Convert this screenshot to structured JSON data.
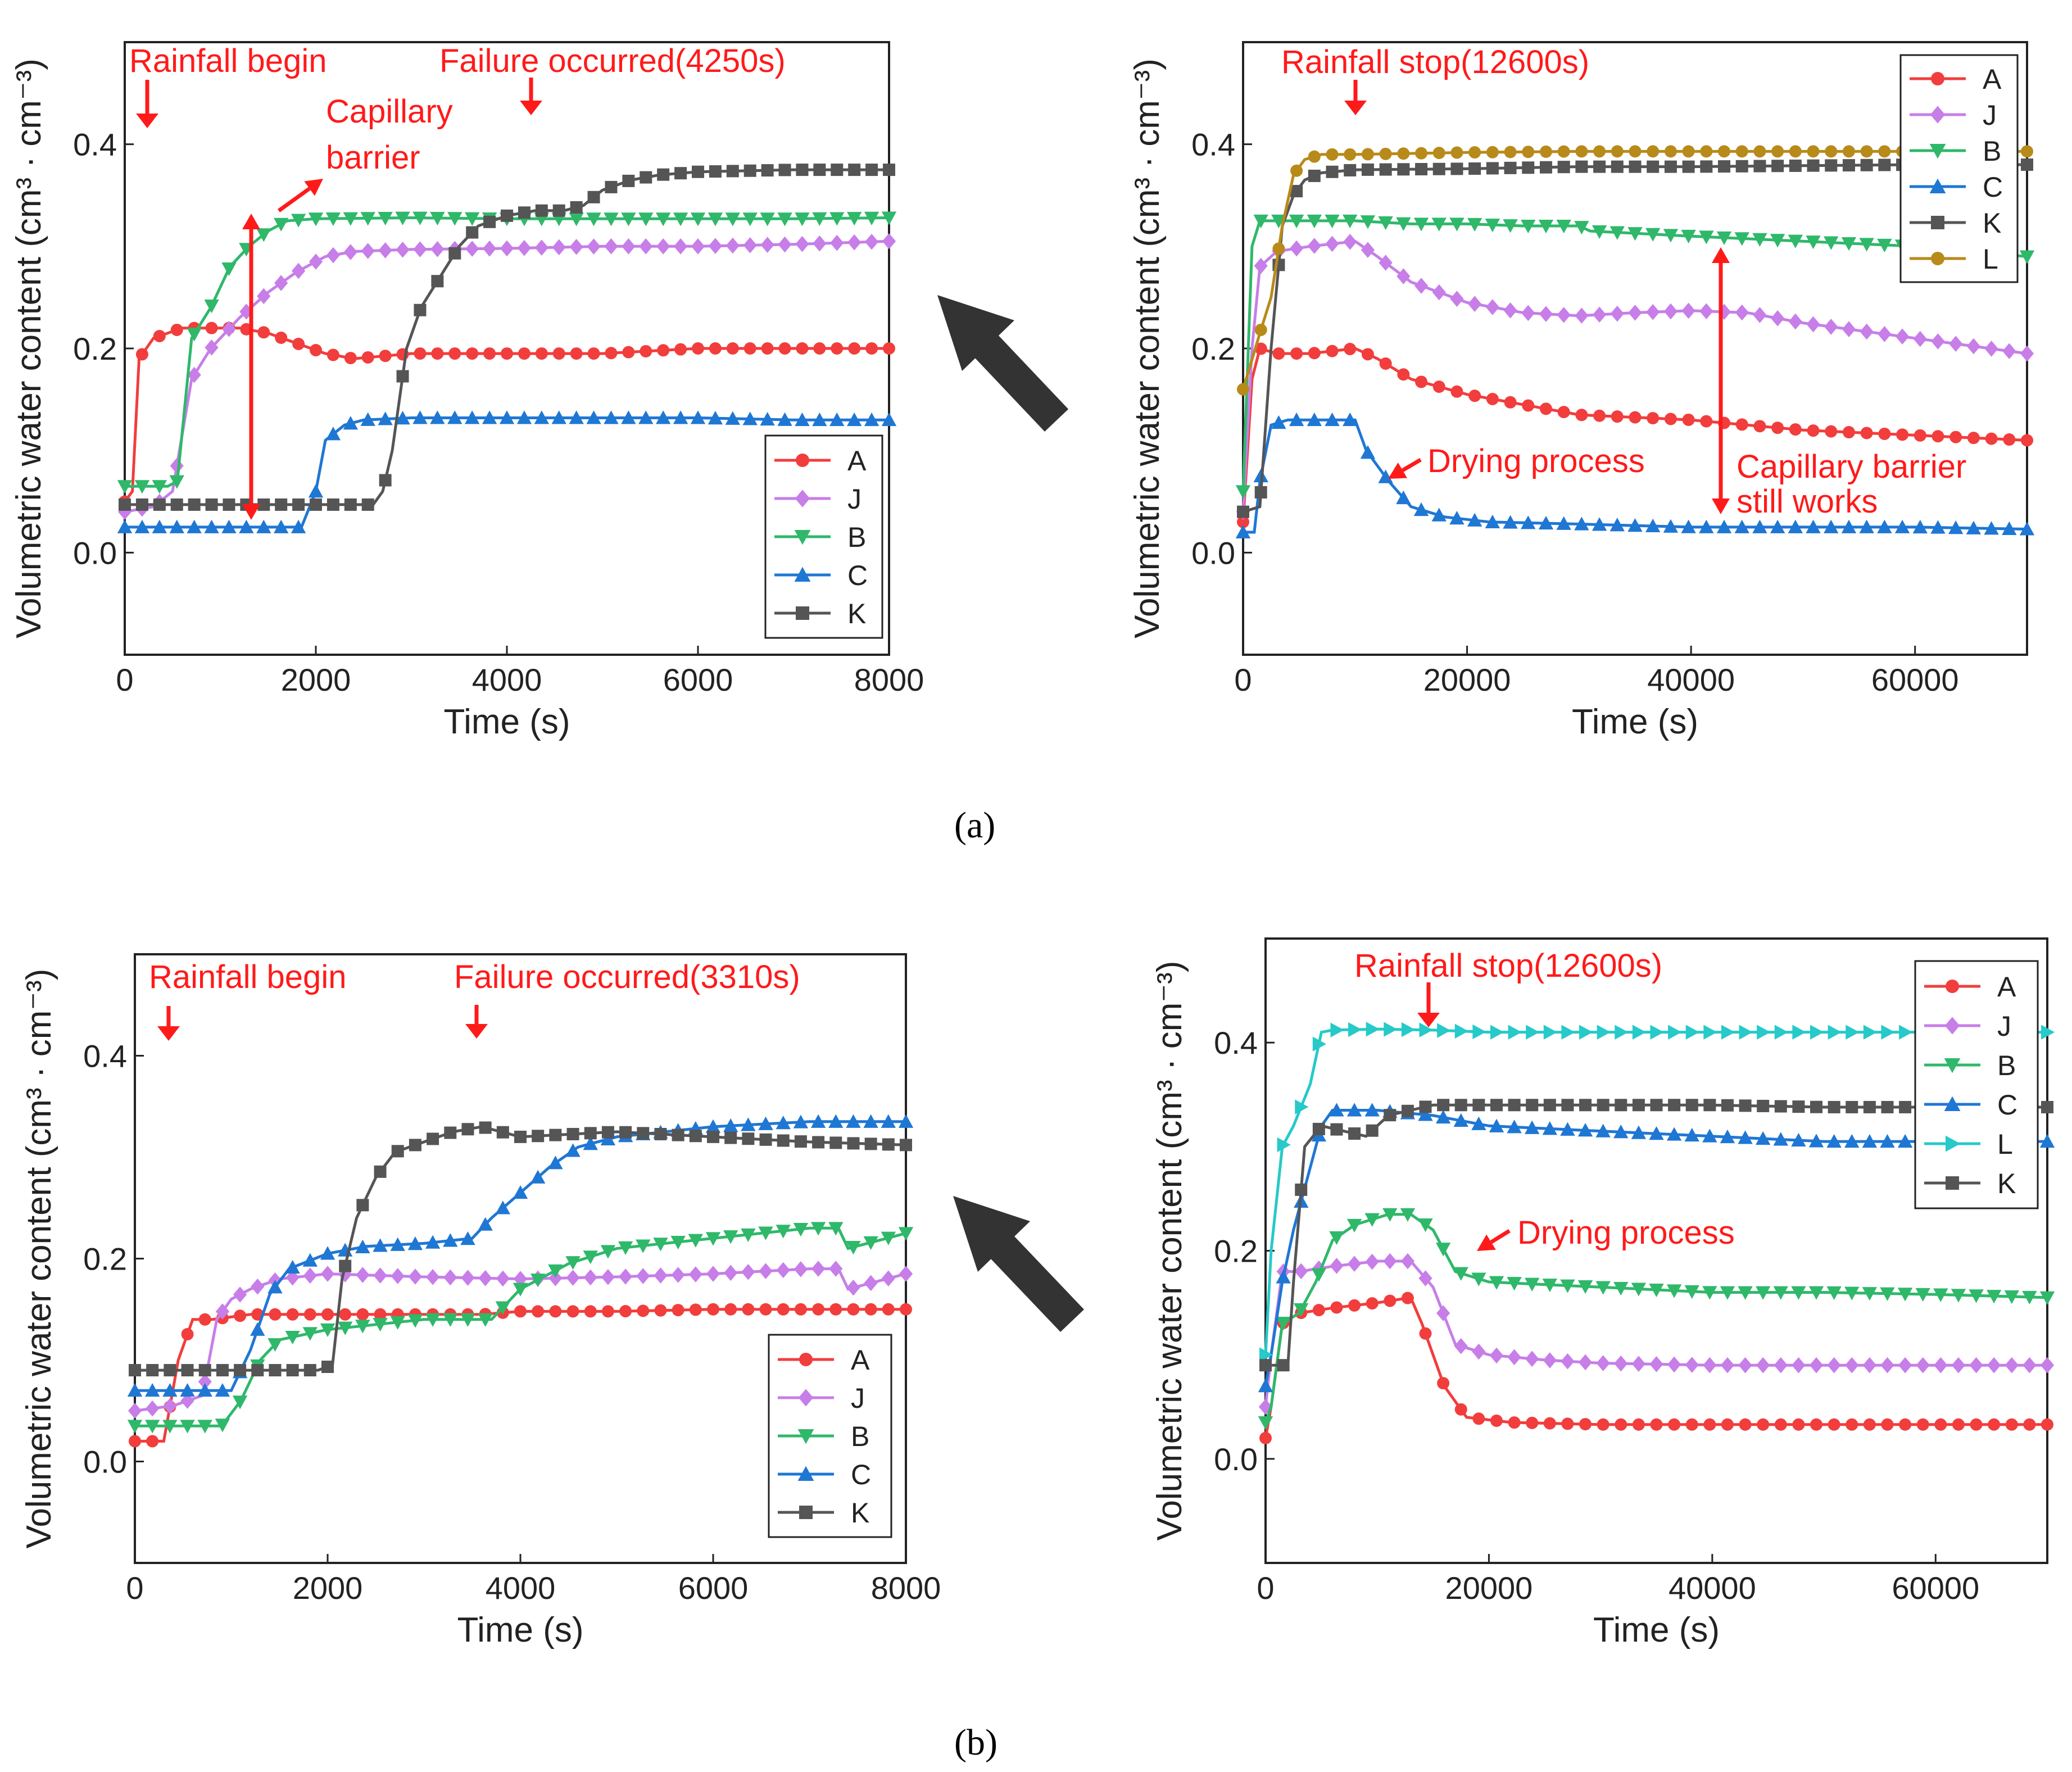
{
  "captions": [
    "(a)",
    "(b)"
  ],
  "colors": {
    "A": "#f23d3d",
    "J": "#c77ee8",
    "B": "#2fb86a",
    "C": "#1f77d4",
    "K": "#555555",
    "L_brown": "#b88a1a",
    "L_cyan": "#27c9c9",
    "annotation": "#ff1a1a",
    "transition_arrow": "#333333"
  },
  "chart_data": [
    {
      "id": "a-left",
      "type": "line",
      "xlabel": "Time (s)",
      "ylabel": "Volumetric water content (cm³ · cm⁻³)",
      "xlim": [
        0,
        8000
      ],
      "ylim": [
        -0.1,
        0.5
      ],
      "xticks": [
        0,
        2000,
        4000,
        6000,
        8000
      ],
      "yticks": [
        0.0,
        0.2,
        0.4
      ],
      "xtick_labels": [
        "0",
        "2000",
        "4000",
        "6000",
        "8000"
      ],
      "ytick_labels": [
        "0.0",
        "0.2",
        "0.4"
      ],
      "legend": [
        "A",
        "J",
        "B",
        "C",
        "K"
      ],
      "series": [
        {
          "name": "A",
          "marker": "circle",
          "color": "#f23d3d",
          "x": [
            0,
            80,
            150,
            300,
            600,
            900,
            1200,
            1500,
            1800,
            2100,
            2400,
            3000,
            4000,
            5000,
            6000,
            7000,
            8000
          ],
          "y": [
            0.05,
            0.06,
            0.19,
            0.21,
            0.22,
            0.22,
            0.22,
            0.215,
            0.205,
            0.195,
            0.19,
            0.195,
            0.195,
            0.195,
            0.2,
            0.2,
            0.2
          ]
        },
        {
          "name": "J",
          "marker": "diamond",
          "color": "#c77ee8",
          "x": [
            0,
            300,
            500,
            700,
            900,
            1200,
            1500,
            1800,
            2100,
            2400,
            3000,
            4000,
            5000,
            6000,
            7000,
            8000
          ],
          "y": [
            0.04,
            0.045,
            0.06,
            0.17,
            0.2,
            0.23,
            0.255,
            0.275,
            0.29,
            0.295,
            0.297,
            0.298,
            0.3,
            0.3,
            0.302,
            0.305
          ]
        },
        {
          "name": "B",
          "marker": "tri-down",
          "color": "#2fb86a",
          "x": [
            0,
            450,
            550,
            700,
            900,
            1100,
            1300,
            1500,
            1700,
            2000,
            3000,
            4000,
            5000,
            6000,
            7000,
            8000
          ],
          "y": [
            0.065,
            0.065,
            0.07,
            0.21,
            0.24,
            0.28,
            0.3,
            0.315,
            0.325,
            0.327,
            0.328,
            0.327,
            0.327,
            0.327,
            0.327,
            0.328
          ]
        },
        {
          "name": "C",
          "marker": "tri-up",
          "color": "#1f77d4",
          "x": [
            0,
            1850,
            2000,
            2100,
            2300,
            2500,
            3000,
            4000,
            5000,
            6000,
            7000,
            8000
          ],
          "y": [
            0.025,
            0.025,
            0.06,
            0.11,
            0.125,
            0.13,
            0.132,
            0.132,
            0.132,
            0.132,
            0.13,
            0.13
          ]
        },
        {
          "name": "K",
          "marker": "square",
          "color": "#555555",
          "x": [
            0,
            2600,
            2700,
            2800,
            2950,
            3100,
            3300,
            3500,
            3700,
            4000,
            4300,
            4600,
            4800,
            5000,
            5300,
            5600,
            6000,
            7000,
            8000
          ],
          "y": [
            0.047,
            0.047,
            0.06,
            0.1,
            0.2,
            0.24,
            0.27,
            0.3,
            0.32,
            0.33,
            0.335,
            0.335,
            0.34,
            0.355,
            0.365,
            0.37,
            0.373,
            0.375,
            0.375
          ]
        }
      ],
      "annotations": [
        "Rainfall begin",
        "Failure occurred(4250s)",
        "Capillary",
        "barrier"
      ]
    },
    {
      "id": "a-right",
      "type": "line",
      "xlabel": "Time (s)",
      "ylabel": "Volumetric water content (cm³ · cm⁻³)",
      "xlim": [
        0,
        70000
      ],
      "ylim": [
        -0.1,
        0.5
      ],
      "xticks": [
        0,
        20000,
        40000,
        60000
      ],
      "yticks": [
        0.0,
        0.2,
        0.4
      ],
      "xtick_labels": [
        "0",
        "20000",
        "40000",
        "60000"
      ],
      "ytick_labels": [
        "0.0",
        "0.2",
        "0.4"
      ],
      "legend": [
        "A",
        "J",
        "B",
        "C",
        "K",
        "L"
      ],
      "series": [
        {
          "name": "A",
          "marker": "circle",
          "color": "#f23d3d",
          "x": [
            0,
            800,
            1500,
            3000,
            6000,
            10000,
            12000,
            15000,
            20000,
            25000,
            30000,
            40000,
            50000,
            60000,
            70000
          ],
          "y": [
            0.03,
            0.17,
            0.2,
            0.195,
            0.195,
            0.2,
            0.19,
            0.17,
            0.155,
            0.145,
            0.135,
            0.13,
            0.12,
            0.115,
            0.11
          ]
        },
        {
          "name": "J",
          "marker": "diamond",
          "color": "#c77ee8",
          "x": [
            0,
            800,
            1500,
            3000,
            6000,
            10000,
            12000,
            15000,
            20000,
            25000,
            30000,
            35000,
            40000,
            45000,
            50000,
            60000,
            70000
          ],
          "y": [
            0.04,
            0.2,
            0.28,
            0.295,
            0.3,
            0.305,
            0.29,
            0.265,
            0.245,
            0.235,
            0.232,
            0.235,
            0.237,
            0.235,
            0.225,
            0.21,
            0.195
          ]
        },
        {
          "name": "B",
          "marker": "tri-down",
          "color": "#2fb86a",
          "x": [
            0,
            800,
            1500,
            3000,
            6000,
            10000,
            15000,
            20000,
            25000,
            30000,
            31000,
            40000,
            50000,
            60000,
            70000
          ],
          "y": [
            0.06,
            0.3,
            0.325,
            0.325,
            0.325,
            0.325,
            0.322,
            0.322,
            0.32,
            0.32,
            0.315,
            0.31,
            0.305,
            0.3,
            0.29
          ]
        },
        {
          "name": "C",
          "marker": "tri-up",
          "color": "#1f77d4",
          "x": [
            0,
            1000,
            1500,
            2500,
            4000,
            6000,
            10000,
            11000,
            13000,
            15000,
            18000,
            22000,
            30000,
            40000,
            50000,
            60000,
            70000
          ],
          "y": [
            0.02,
            0.02,
            0.07,
            0.125,
            0.13,
            0.13,
            0.13,
            0.1,
            0.07,
            0.045,
            0.035,
            0.03,
            0.028,
            0.025,
            0.025,
            0.025,
            0.023
          ]
        },
        {
          "name": "K",
          "marker": "square",
          "color": "#555555",
          "x": [
            0,
            1500,
            2500,
            3500,
            4500,
            5500,
            7000,
            10000,
            20000,
            30000,
            40000,
            50000,
            60000,
            70000
          ],
          "y": [
            0.04,
            0.045,
            0.2,
            0.32,
            0.35,
            0.365,
            0.372,
            0.375,
            0.376,
            0.378,
            0.378,
            0.379,
            0.38,
            0.38
          ]
        },
        {
          "name": "L",
          "marker": "circle",
          "color": "#b88a1a",
          "x": [
            0,
            1500,
            2500,
            3500,
            4500,
            5500,
            7000,
            10000,
            20000,
            30000,
            40000,
            50000,
            60000,
            70000
          ],
          "y": [
            0.16,
            0.215,
            0.25,
            0.32,
            0.37,
            0.385,
            0.39,
            0.39,
            0.392,
            0.393,
            0.393,
            0.393,
            0.393,
            0.393
          ]
        }
      ],
      "annotations": [
        "Rainfall stop(12600s)",
        "Drying process",
        "Capillary barrier",
        "still works"
      ]
    },
    {
      "id": "b-left",
      "type": "line",
      "xlabel": "Time (s)",
      "ylabel": "Volumetric water content (cm³ · cm⁻³)",
      "xlim": [
        0,
        8000
      ],
      "ylim": [
        -0.1,
        0.5
      ],
      "xticks": [
        0,
        2000,
        4000,
        6000,
        8000
      ],
      "yticks": [
        0.0,
        0.2,
        0.4
      ],
      "xtick_labels": [
        "0",
        "2000",
        "4000",
        "6000",
        "8000"
      ],
      "ytick_labels": [
        "0.0",
        "0.2",
        "0.4"
      ],
      "legend": [
        "A",
        "J",
        "B",
        "C",
        "K"
      ],
      "series": [
        {
          "name": "A",
          "marker": "circle",
          "color": "#f23d3d",
          "x": [
            0,
            300,
            450,
            600,
            800,
            1200,
            2000,
            3000,
            3600,
            4000,
            5000,
            6000,
            7000,
            8000
          ],
          "y": [
            0.02,
            0.02,
            0.1,
            0.14,
            0.14,
            0.145,
            0.145,
            0.145,
            0.145,
            0.148,
            0.148,
            0.15,
            0.15,
            0.15
          ]
        },
        {
          "name": "J",
          "marker": "diamond",
          "color": "#c77ee8",
          "x": [
            0,
            400,
            700,
            850,
            1000,
            1200,
            1500,
            2000,
            3000,
            4000,
            5000,
            6000,
            7000,
            7300,
            7400,
            8000
          ],
          "y": [
            0.05,
            0.055,
            0.065,
            0.14,
            0.16,
            0.17,
            0.18,
            0.185,
            0.182,
            0.18,
            0.182,
            0.185,
            0.19,
            0.19,
            0.17,
            0.185
          ]
        },
        {
          "name": "B",
          "marker": "tri-down",
          "color": "#2fb86a",
          "x": [
            0,
            900,
            1100,
            1300,
            1500,
            2000,
            3000,
            3700,
            4000,
            4500,
            5000,
            6000,
            7000,
            7300,
            7400,
            8000
          ],
          "y": [
            0.035,
            0.035,
            0.06,
            0.1,
            0.12,
            0.13,
            0.14,
            0.14,
            0.17,
            0.195,
            0.21,
            0.22,
            0.23,
            0.23,
            0.21,
            0.225
          ]
        },
        {
          "name": "C",
          "marker": "tri-up",
          "color": "#1f77d4",
          "x": [
            0,
            1000,
            1200,
            1400,
            1600,
            2000,
            2400,
            3000,
            3500,
            3700,
            4000,
            4300,
            4600,
            5000,
            6000,
            7000,
            8000
          ],
          "y": [
            0.07,
            0.07,
            0.11,
            0.165,
            0.19,
            0.205,
            0.212,
            0.215,
            0.22,
            0.24,
            0.265,
            0.29,
            0.31,
            0.32,
            0.33,
            0.335,
            0.335
          ]
        },
        {
          "name": "K",
          "marker": "square",
          "color": "#555555",
          "x": [
            0,
            1900,
            2050,
            2150,
            2300,
            2500,
            2700,
            3000,
            3300,
            3600,
            4000,
            5000,
            6000,
            7000,
            8000
          ],
          "y": [
            0.09,
            0.09,
            0.095,
            0.18,
            0.24,
            0.28,
            0.305,
            0.315,
            0.325,
            0.33,
            0.32,
            0.325,
            0.32,
            0.315,
            0.312
          ]
        }
      ],
      "annotations": [
        "Rainfall begin",
        "Failure occurred(3310s)"
      ]
    },
    {
      "id": "b-right",
      "type": "line",
      "xlabel": "Time (s)",
      "ylabel": "Volumetric water content (cm³ · cm⁻³)",
      "xlim": [
        0,
        70000
      ],
      "ylim": [
        -0.1,
        0.5
      ],
      "xticks": [
        0,
        20000,
        40000,
        60000
      ],
      "yticks": [
        0.0,
        0.2,
        0.4
      ],
      "xtick_labels": [
        "0",
        "20000",
        "40000",
        "60000"
      ],
      "ytick_labels": [
        "0.0",
        "0.2",
        "0.4"
      ],
      "legend": [
        "A",
        "J",
        "B",
        "C",
        "L",
        "K"
      ],
      "series": [
        {
          "name": "A",
          "marker": "circle",
          "color": "#f23d3d",
          "x": [
            0,
            500,
            1500,
            3000,
            6000,
            10000,
            13000,
            14000,
            16000,
            18000,
            22000,
            30000,
            40000,
            50000,
            60000,
            70000
          ],
          "y": [
            0.02,
            0.05,
            0.13,
            0.14,
            0.145,
            0.15,
            0.155,
            0.13,
            0.07,
            0.04,
            0.035,
            0.033,
            0.033,
            0.033,
            0.033,
            0.033
          ]
        },
        {
          "name": "J",
          "marker": "diamond",
          "color": "#c77ee8",
          "x": [
            0,
            500,
            1500,
            3000,
            6000,
            10000,
            13000,
            15000,
            17000,
            20000,
            25000,
            30000,
            40000,
            50000,
            60000,
            70000
          ],
          "y": [
            0.05,
            0.1,
            0.18,
            0.18,
            0.185,
            0.19,
            0.19,
            0.165,
            0.11,
            0.1,
            0.095,
            0.092,
            0.09,
            0.09,
            0.09,
            0.09
          ]
        },
        {
          "name": "B",
          "marker": "tri-down",
          "color": "#2fb86a",
          "x": [
            0,
            500,
            1500,
            3000,
            4500,
            6000,
            8000,
            11000,
            13000,
            15000,
            17000,
            20000,
            30000,
            40000,
            50000,
            60000,
            70000
          ],
          "y": [
            0.035,
            0.05,
            0.13,
            0.14,
            0.17,
            0.21,
            0.225,
            0.235,
            0.235,
            0.22,
            0.18,
            0.17,
            0.165,
            0.16,
            0.16,
            0.158,
            0.155
          ]
        },
        {
          "name": "C",
          "marker": "tri-up",
          "color": "#1f77d4",
          "x": [
            0,
            500,
            1500,
            2500,
            4000,
            5000,
            6000,
            10000,
            15000,
            20000,
            30000,
            40000,
            50000,
            60000,
            70000
          ],
          "y": [
            0.07,
            0.1,
            0.17,
            0.22,
            0.28,
            0.32,
            0.335,
            0.335,
            0.33,
            0.32,
            0.315,
            0.31,
            0.305,
            0.305,
            0.305
          ]
        },
        {
          "name": "L",
          "marker": "tri-right",
          "color": "#27c9c9",
          "x": [
            0,
            500,
            1500,
            2500,
            4000,
            5000,
            6000,
            10000,
            15000,
            20000,
            30000,
            40000,
            50000,
            60000,
            70000
          ],
          "y": [
            0.1,
            0.2,
            0.3,
            0.32,
            0.36,
            0.41,
            0.412,
            0.413,
            0.412,
            0.41,
            0.41,
            0.41,
            0.41,
            0.41,
            0.41
          ]
        },
        {
          "name": "K",
          "marker": "square",
          "color": "#555555",
          "x": [
            0,
            1000,
            2000,
            2500,
            3500,
            5000,
            7000,
            9000,
            11000,
            13000,
            15000,
            20000,
            30000,
            40000,
            50000,
            60000,
            70000
          ],
          "y": [
            0.09,
            0.09,
            0.09,
            0.17,
            0.3,
            0.32,
            0.315,
            0.31,
            0.33,
            0.335,
            0.34,
            0.34,
            0.34,
            0.34,
            0.338,
            0.338,
            0.338
          ]
        }
      ],
      "annotations": [
        "Rainfall stop(12600s)",
        "Drying process"
      ]
    }
  ]
}
